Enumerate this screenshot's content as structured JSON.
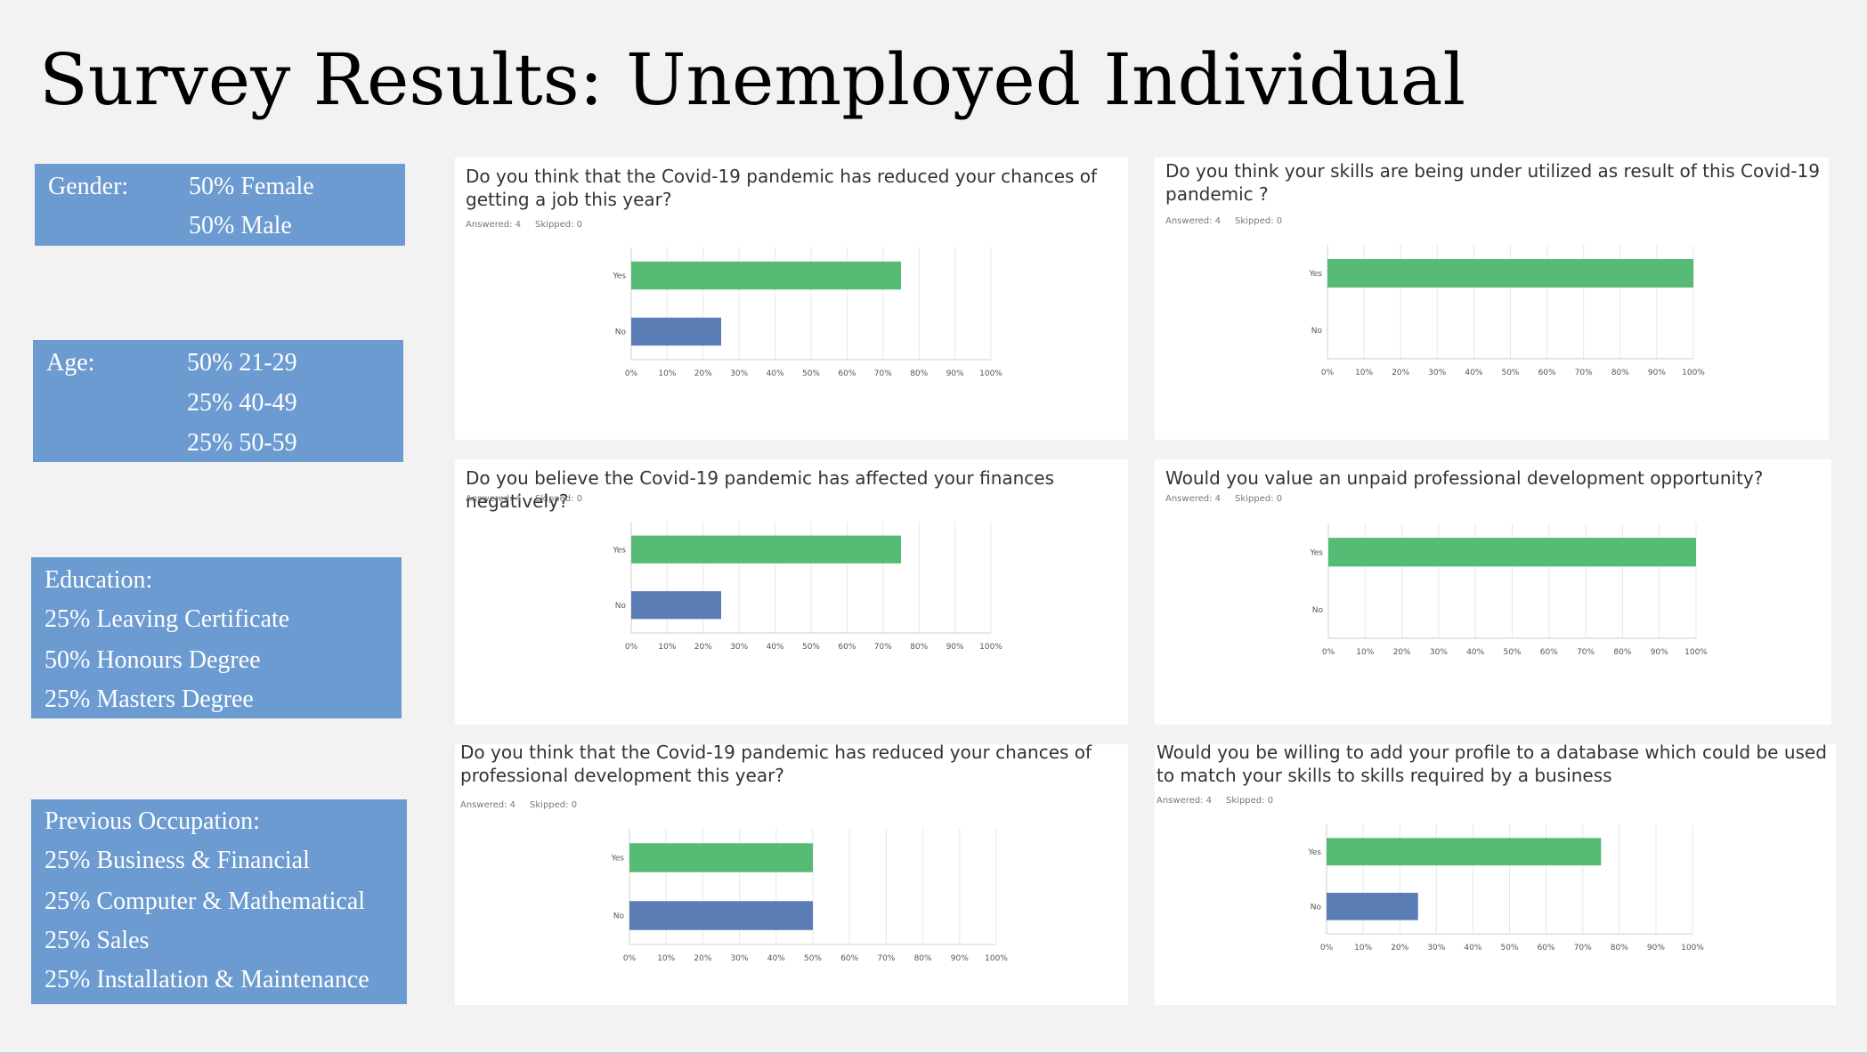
{
  "title": "Survey Results: Unemployed Individual",
  "colors": {
    "box": "#6b9bd1",
    "yes": "#56bb74",
    "no": "#5b7db5"
  },
  "demographics": {
    "gender": {
      "label": "Gender:",
      "values": [
        "50% Female",
        "50% Male"
      ]
    },
    "age": {
      "label": "Age:",
      "values": [
        "50% 21-29",
        "25% 40-49",
        "25% 50-59"
      ]
    },
    "education": {
      "lines": [
        "Education:",
        "25% Leaving Certificate",
        "50% Honours Degree",
        "25% Masters Degree"
      ]
    },
    "occupation": {
      "lines": [
        "Previous Occupation:",
        "25% Business & Financial",
        "25% Computer & Mathematical",
        "25% Sales",
        "25% Installation & Maintenance"
      ]
    }
  },
  "chart_data": [
    {
      "type": "bar",
      "orientation": "horizontal",
      "title": "Do you think that the Covid-19 pandemic has reduced your chances of getting a job this year?",
      "answered": "Answered: 4",
      "skipped": "Skipped: 0",
      "categories": [
        "Yes",
        "No"
      ],
      "values": [
        75,
        25
      ],
      "xticks": [
        "0%",
        "10%",
        "20%",
        "30%",
        "40%",
        "50%",
        "60%",
        "70%",
        "80%",
        "90%",
        "100%"
      ],
      "xlim": [
        0,
        100
      ]
    },
    {
      "type": "bar",
      "orientation": "horizontal",
      "title": "Do you think your skills are being under utilized as result of this Covid-19 pandemic ?",
      "answered": "Answered: 4",
      "skipped": "Skipped: 0",
      "categories": [
        "Yes",
        "No"
      ],
      "values": [
        100,
        0
      ],
      "xticks": [
        "0%",
        "10%",
        "20%",
        "30%",
        "40%",
        "50%",
        "60%",
        "70%",
        "80%",
        "90%",
        "100%"
      ],
      "xlim": [
        0,
        100
      ]
    },
    {
      "type": "bar",
      "orientation": "horizontal",
      "title": "Do you believe the Covid-19 pandemic has affected your finances negatively?",
      "answered": "Answered: 4",
      "skipped": "Skipped: 0",
      "categories": [
        "Yes",
        "No"
      ],
      "values": [
        75,
        25
      ],
      "xticks": [
        "0%",
        "10%",
        "20%",
        "30%",
        "40%",
        "50%",
        "60%",
        "70%",
        "80%",
        "90%",
        "100%"
      ],
      "xlim": [
        0,
        100
      ]
    },
    {
      "type": "bar",
      "orientation": "horizontal",
      "title": "Would you value an unpaid professional development opportunity?",
      "answered": "Answered: 4",
      "skipped": "Skipped: 0",
      "categories": [
        "Yes",
        "No"
      ],
      "values": [
        100,
        0
      ],
      "xticks": [
        "0%",
        "10%",
        "20%",
        "30%",
        "40%",
        "50%",
        "60%",
        "70%",
        "80%",
        "90%",
        "100%"
      ],
      "xlim": [
        0,
        100
      ]
    },
    {
      "type": "bar",
      "orientation": "horizontal",
      "title": "Do you think that the Covid-19 pandemic has reduced your chances of professional development this year?",
      "answered": "Answered: 4",
      "skipped": "Skipped: 0",
      "categories": [
        "Yes",
        "No"
      ],
      "values": [
        50,
        50
      ],
      "xticks": [
        "0%",
        "10%",
        "20%",
        "30%",
        "40%",
        "50%",
        "60%",
        "70%",
        "80%",
        "90%",
        "100%"
      ],
      "xlim": [
        0,
        100
      ]
    },
    {
      "type": "bar",
      "orientation": "horizontal",
      "title": "Would you be willing to add your profile to a database which could be used to match your skills to skills required by a business",
      "answered": "Answered: 4",
      "skipped": "Skipped: 0",
      "categories": [
        "Yes",
        "No"
      ],
      "values": [
        75,
        25
      ],
      "xticks": [
        "0%",
        "10%",
        "20%",
        "30%",
        "40%",
        "50%",
        "60%",
        "70%",
        "80%",
        "90%",
        "100%"
      ],
      "xlim": [
        0,
        100
      ]
    }
  ]
}
